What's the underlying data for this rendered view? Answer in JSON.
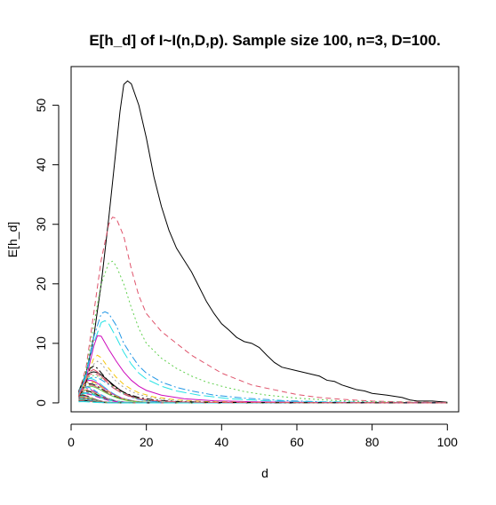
{
  "chart_data": {
    "type": "line",
    "title": "E[h_d] of I~I(n,D,p). Sample size 100, n=3, D=100.",
    "xlabel": "d",
    "ylabel": "E[h_d]",
    "xlim": [
      0,
      103
    ],
    "ylim": [
      -1.5,
      56.5
    ],
    "xticks": [
      0,
      20,
      40,
      60,
      80,
      100
    ],
    "yticks": [
      0,
      10,
      20,
      30,
      40,
      50
    ],
    "grid": false,
    "legend": "none",
    "highlighted_series": [
      {
        "color": "#000000",
        "dash": "solid",
        "points": [
          [
            2,
            1.8
          ],
          [
            4,
            5
          ],
          [
            6,
            11
          ],
          [
            8,
            20
          ],
          [
            10,
            31
          ],
          [
            12,
            43
          ],
          [
            13,
            49
          ],
          [
            14,
            53.5
          ],
          [
            15,
            54.1
          ],
          [
            16,
            53.6
          ],
          [
            18,
            50
          ],
          [
            20,
            44.5
          ],
          [
            22,
            38
          ],
          [
            24,
            33
          ],
          [
            26,
            29
          ],
          [
            28,
            26
          ],
          [
            30,
            24
          ],
          [
            32,
            22
          ],
          [
            34,
            19.5
          ],
          [
            36,
            17
          ],
          [
            38,
            15
          ],
          [
            40,
            13.3
          ],
          [
            42,
            12.2
          ],
          [
            44,
            11
          ],
          [
            46,
            10.3
          ],
          [
            48,
            10
          ],
          [
            50,
            9.3
          ],
          [
            52,
            8
          ],
          [
            54,
            6.8
          ],
          [
            56,
            6
          ],
          [
            60,
            5.4
          ],
          [
            64,
            4.8
          ],
          [
            66,
            4.5
          ],
          [
            68,
            3.8
          ],
          [
            70,
            3.6
          ],
          [
            72,
            3
          ],
          [
            74,
            2.6
          ],
          [
            76,
            2.2
          ],
          [
            78,
            2
          ],
          [
            80,
            1.6
          ],
          [
            84,
            1.3
          ],
          [
            88,
            0.9
          ],
          [
            90,
            0.5
          ],
          [
            92,
            0.3
          ],
          [
            96,
            0.3
          ],
          [
            100,
            0.1
          ]
        ]
      },
      {
        "color": "#df536b",
        "dash": "6,4",
        "points": [
          [
            2,
            1.6
          ],
          [
            4,
            6
          ],
          [
            6,
            15
          ],
          [
            8,
            24
          ],
          [
            10,
            30
          ],
          [
            11,
            31.2
          ],
          [
            12,
            31
          ],
          [
            14,
            28
          ],
          [
            16,
            22.5
          ],
          [
            18,
            18
          ],
          [
            20,
            15
          ],
          [
            24,
            12
          ],
          [
            28,
            10
          ],
          [
            32,
            8
          ],
          [
            36,
            6.5
          ],
          [
            40,
            5
          ],
          [
            44,
            4
          ],
          [
            48,
            3
          ],
          [
            54,
            2.2
          ],
          [
            60,
            1.4
          ],
          [
            66,
            0.9
          ],
          [
            72,
            0.6
          ],
          [
            80,
            0.3
          ],
          [
            90,
            0.15
          ],
          [
            100,
            0.05
          ]
        ]
      },
      {
        "color": "#61d04f",
        "dash": "2,3",
        "points": [
          [
            2,
            1.5
          ],
          [
            4,
            5.5
          ],
          [
            6,
            13
          ],
          [
            8,
            20
          ],
          [
            10,
            23.5
          ],
          [
            11,
            23.8
          ],
          [
            12,
            23
          ],
          [
            14,
            20
          ],
          [
            16,
            16
          ],
          [
            18,
            12.5
          ],
          [
            20,
            10
          ],
          [
            24,
            7.5
          ],
          [
            28,
            5.8
          ],
          [
            32,
            4.5
          ],
          [
            36,
            3.5
          ],
          [
            40,
            2.8
          ],
          [
            46,
            1.9
          ],
          [
            52,
            1.3
          ],
          [
            60,
            0.8
          ],
          [
            70,
            0.4
          ],
          [
            80,
            0.2
          ],
          [
            90,
            0.1
          ],
          [
            100,
            0.05
          ]
        ]
      },
      {
        "color": "#2297e6",
        "dash": "8,3,2,3",
        "points": [
          [
            2,
            1.4
          ],
          [
            4,
            5
          ],
          [
            6,
            11
          ],
          [
            8,
            15
          ],
          [
            9,
            15.3
          ],
          [
            10,
            15
          ],
          [
            12,
            13
          ],
          [
            14,
            10
          ],
          [
            16,
            8
          ],
          [
            18,
            6.2
          ],
          [
            20,
            5
          ],
          [
            24,
            3.5
          ],
          [
            28,
            2.6
          ],
          [
            32,
            2
          ],
          [
            38,
            1.3
          ],
          [
            46,
            0.8
          ],
          [
            56,
            0.4
          ],
          [
            66,
            0.2
          ],
          [
            80,
            0.1
          ],
          [
            100,
            0.03
          ]
        ]
      },
      {
        "color": "#28e2e5",
        "dash": "12,4",
        "points": [
          [
            2,
            1.3
          ],
          [
            4,
            4.5
          ],
          [
            6,
            10
          ],
          [
            8,
            13.5
          ],
          [
            9,
            13.8
          ],
          [
            10,
            13.3
          ],
          [
            12,
            11
          ],
          [
            14,
            8.5
          ],
          [
            16,
            6.5
          ],
          [
            18,
            5
          ],
          [
            20,
            4
          ],
          [
            24,
            2.8
          ],
          [
            28,
            2
          ],
          [
            34,
            1.3
          ],
          [
            42,
            0.7
          ],
          [
            52,
            0.35
          ],
          [
            64,
            0.15
          ],
          [
            80,
            0.06
          ],
          [
            100,
            0.02
          ]
        ]
      },
      {
        "color": "#cd0bbc",
        "dash": "solid",
        "points": [
          [
            2,
            1.2
          ],
          [
            4,
            4
          ],
          [
            6,
            9.5
          ],
          [
            7,
            11.3
          ],
          [
            8,
            11.2
          ],
          [
            10,
            9
          ],
          [
            12,
            7
          ],
          [
            14,
            5.2
          ],
          [
            16,
            3.8
          ],
          [
            18,
            2.8
          ],
          [
            20,
            2.1
          ],
          [
            24,
            1.3
          ],
          [
            30,
            0.7
          ],
          [
            38,
            0.35
          ],
          [
            50,
            0.15
          ],
          [
            65,
            0.06
          ],
          [
            80,
            0.03
          ],
          [
            100,
            0.01
          ]
        ]
      },
      {
        "color": "#f5c710",
        "dash": "6,4",
        "points": [
          [
            2,
            1.1
          ],
          [
            4,
            4
          ],
          [
            6,
            7.5
          ],
          [
            7,
            8
          ],
          [
            8,
            7.6
          ],
          [
            10,
            5.8
          ],
          [
            12,
            4.3
          ],
          [
            14,
            3.1
          ],
          [
            16,
            2.3
          ],
          [
            18,
            1.7
          ],
          [
            22,
            1
          ],
          [
            28,
            0.5
          ],
          [
            36,
            0.22
          ],
          [
            48,
            0.08
          ],
          [
            65,
            0.03
          ],
          [
            100,
            0.01
          ]
        ]
      },
      {
        "color": "#9e9e9e",
        "dash": "2,3",
        "points": [
          [
            2,
            1
          ],
          [
            4,
            3.5
          ],
          [
            6,
            6.5
          ],
          [
            7,
            7
          ],
          [
            8,
            6.6
          ],
          [
            10,
            5
          ],
          [
            12,
            3.6
          ],
          [
            14,
            2.6
          ],
          [
            16,
            1.9
          ],
          [
            18,
            1.4
          ],
          [
            22,
            0.8
          ],
          [
            28,
            0.4
          ],
          [
            36,
            0.17
          ],
          [
            50,
            0.06
          ],
          [
            100,
            0.01
          ]
        ]
      },
      {
        "color": "#000000",
        "dash": "8,3,2,3",
        "points": [
          [
            2,
            1
          ],
          [
            4,
            3.5
          ],
          [
            5,
            5.8
          ],
          [
            6,
            6.2
          ],
          [
            7,
            5.8
          ],
          [
            9,
            4.3
          ],
          [
            11,
            3
          ],
          [
            13,
            2.1
          ],
          [
            15,
            1.5
          ],
          [
            18,
            0.9
          ],
          [
            22,
            0.5
          ],
          [
            28,
            0.24
          ],
          [
            38,
            0.08
          ],
          [
            55,
            0.03
          ],
          [
            100,
            0.01
          ]
        ]
      },
      {
        "color": "#df536b",
        "dash": "12,4",
        "points": [
          [
            2,
            1
          ],
          [
            3,
            2.5
          ],
          [
            5,
            5.3
          ],
          [
            6,
            5.6
          ],
          [
            7,
            5.2
          ],
          [
            9,
            3.8
          ],
          [
            11,
            2.6
          ],
          [
            13,
            1.8
          ],
          [
            15,
            1.2
          ],
          [
            18,
            0.7
          ],
          [
            22,
            0.4
          ],
          [
            28,
            0.18
          ],
          [
            40,
            0.05
          ],
          [
            100,
            0.01
          ]
        ]
      }
    ],
    "family_palette": [
      "#000000",
      "#df536b",
      "#61d04f",
      "#2297e6",
      "#28e2e5",
      "#cd0bbc",
      "#f5c710",
      "#9e9e9e"
    ],
    "family_dashes": [
      "solid",
      "6,4",
      "2,3",
      "8,3,2,3",
      "12,4"
    ],
    "family_peaks": [
      5.2,
      4.9,
      4.6,
      4.3,
      4.1,
      3.8,
      3.6,
      3.4,
      3.2,
      3.0,
      2.8,
      2.7,
      2.5,
      2.4,
      2.2,
      2.1,
      2.0,
      1.9,
      1.8,
      1.7,
      1.6,
      1.5,
      1.4,
      1.35,
      1.3,
      1.2,
      1.15,
      1.1,
      1.0,
      0.95,
      0.9,
      0.85,
      0.8,
      0.75,
      0.7,
      0.65,
      0.6,
      0.55,
      0.5,
      0.45,
      0.4,
      0.35,
      0.3,
      0.25,
      0.2
    ],
    "family_peak_x": [
      6,
      6,
      6,
      6,
      5,
      5,
      5,
      5,
      5,
      5,
      5,
      4,
      4,
      4,
      4,
      4,
      4,
      4,
      4,
      4,
      4,
      4,
      3,
      3,
      3,
      3,
      3,
      3,
      3,
      3,
      3,
      3,
      3,
      3,
      3,
      3,
      3,
      3,
      3,
      3,
      3,
      3,
      3,
      3,
      3
    ]
  }
}
